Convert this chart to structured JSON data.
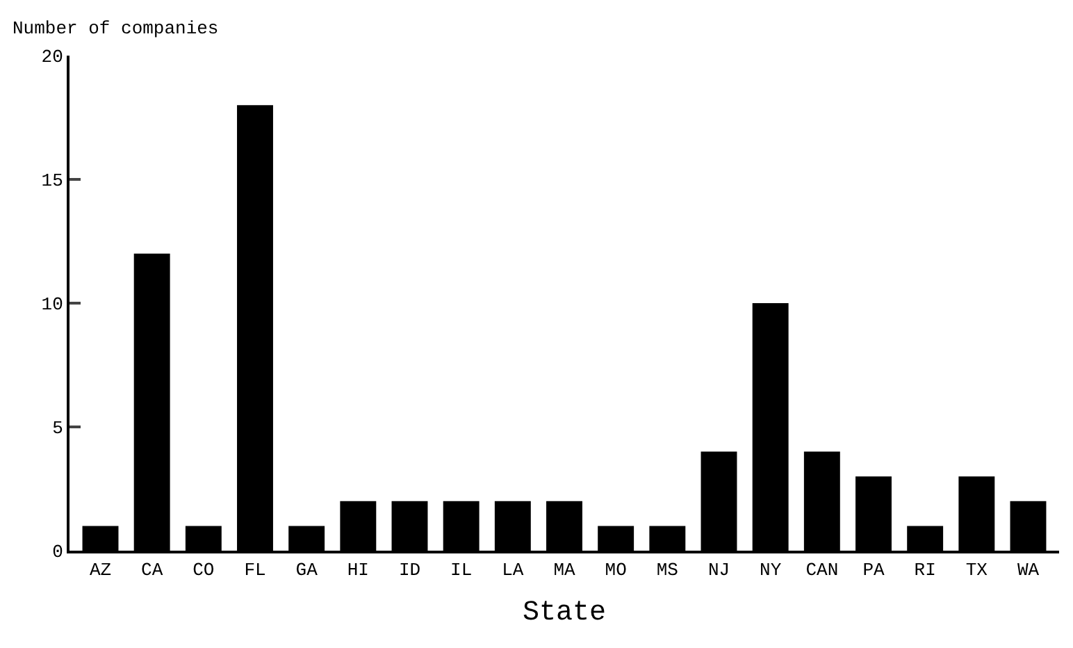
{
  "chart_data": {
    "type": "bar",
    "ylabel": "Number of companies",
    "xlabel": "State",
    "categories": [
      "AZ",
      "CA",
      "CO",
      "FL",
      "GA",
      "HI",
      "ID",
      "IL",
      "LA",
      "MA",
      "MO",
      "MS",
      "NJ",
      "NY",
      "CAN",
      "PA",
      "RI",
      "TX",
      "WA"
    ],
    "values": [
      1,
      12,
      1,
      18,
      1,
      2,
      2,
      2,
      2,
      2,
      1,
      1,
      4,
      10,
      4,
      3,
      1,
      3,
      2
    ],
    "color": "#000000",
    "ylim": [
      0,
      20
    ],
    "yticks": [
      0,
      5,
      10,
      15,
      20
    ]
  }
}
